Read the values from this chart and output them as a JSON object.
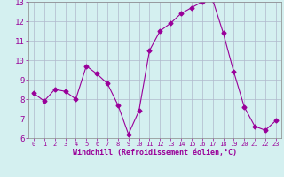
{
  "x": [
    0,
    1,
    2,
    3,
    4,
    5,
    6,
    7,
    8,
    9,
    10,
    11,
    12,
    13,
    14,
    15,
    16,
    17,
    18,
    19,
    20,
    21,
    22,
    23
  ],
  "y": [
    8.3,
    7.9,
    8.5,
    8.4,
    8.0,
    9.7,
    9.3,
    8.8,
    7.7,
    6.2,
    7.4,
    10.5,
    11.5,
    11.9,
    12.4,
    12.7,
    13.0,
    13.1,
    11.4,
    9.4,
    7.6,
    6.6,
    6.4,
    6.9
  ],
  "line_color": "#990099",
  "marker": "D",
  "marker_size": 2.5,
  "bg_color": "#d4f0f0",
  "grid_color": "#b0b8cc",
  "xlabel": "Windchill (Refroidissement éolien,°C)",
  "xlabel_color": "#990099",
  "tick_color": "#990099",
  "ylim": [
    6,
    13
  ],
  "xlim": [
    -0.5,
    23.5
  ],
  "yticks": [
    6,
    7,
    8,
    9,
    10,
    11,
    12,
    13
  ],
  "xticks": [
    0,
    1,
    2,
    3,
    4,
    5,
    6,
    7,
    8,
    9,
    10,
    11,
    12,
    13,
    14,
    15,
    16,
    17,
    18,
    19,
    20,
    21,
    22,
    23
  ],
  "xlabel_fontsize": 6.0,
  "xtick_fontsize": 5.0,
  "ytick_fontsize": 6.5
}
